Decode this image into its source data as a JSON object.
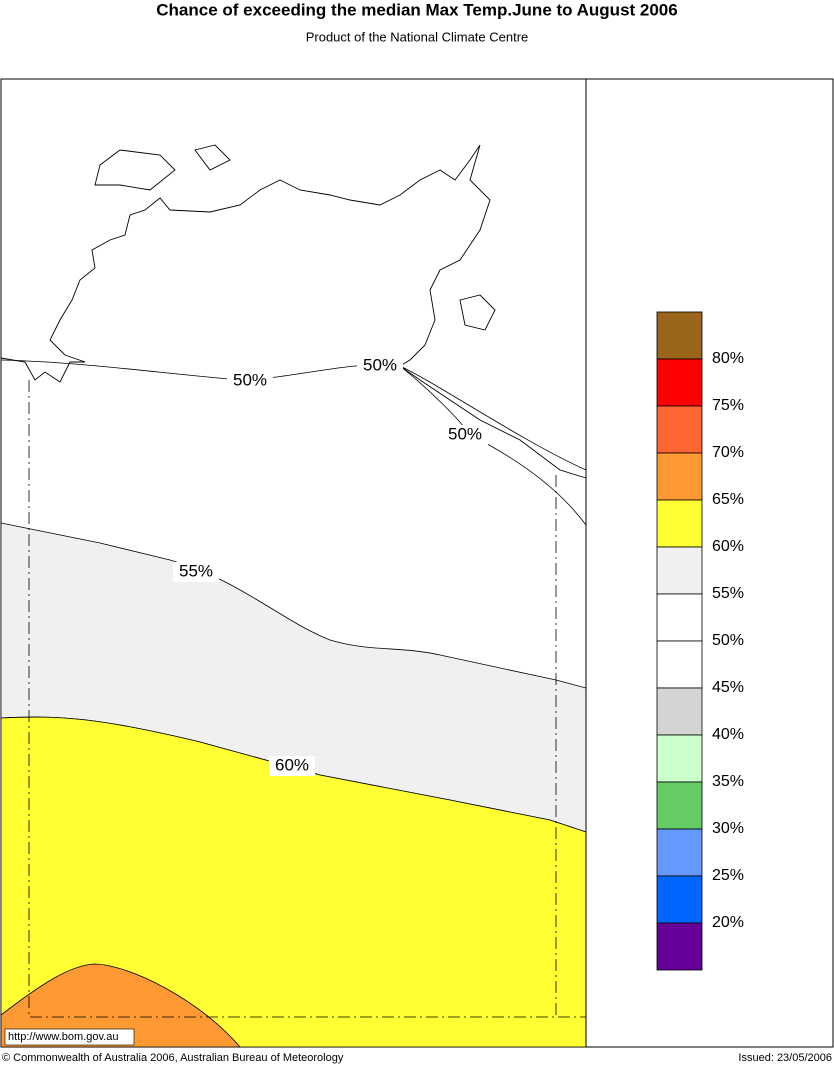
{
  "header": {
    "title": "Chance of exceeding the median Max Temp.June to August 2006",
    "subtitle": "Product of the National Climate Centre"
  },
  "map": {
    "contour_labels": [
      "50%",
      "50%",
      "50%",
      "55%",
      "60%"
    ]
  },
  "legend": {
    "colors": [
      "#9a6619",
      "#ff0000",
      "#ff6633",
      "#ff9933",
      "#ffff33",
      "#f0f0f0",
      "#ffffff",
      "#ffffff",
      "#d4d4d4",
      "#ccffcc",
      "#66cc66",
      "#6699ff",
      "#0066ff",
      "#660099"
    ],
    "labels": [
      "80%",
      "75%",
      "70%",
      "65%",
      "60%",
      "55%",
      "50%",
      "45%",
      "40%",
      "35%",
      "30%",
      "25%",
      "20%"
    ]
  },
  "footer": {
    "url": "http://www.bom.gov.au",
    "copyright": "© Commonwealth of Australia 2006, Australian Bureau of Meteorology",
    "issued": "Issued: 23/05/2006"
  }
}
